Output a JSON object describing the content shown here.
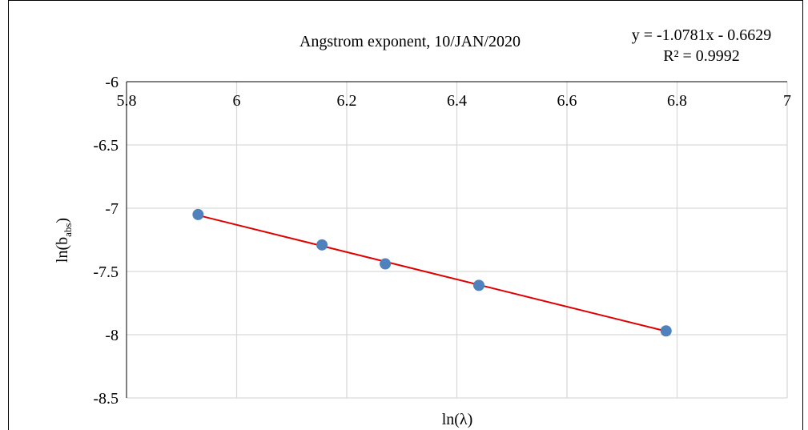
{
  "chart_data": {
    "type": "scatter",
    "title": "Angstrom exponent, 10/JAN/2020",
    "xlabel": "ln(λ)",
    "ylabel_main": "ln(b",
    "ylabel_sub": "abs",
    "ylabel_close": ")",
    "xlim": [
      5.8,
      7.0
    ],
    "ylim": [
      -8.5,
      -6.0
    ],
    "x_ticks": [
      5.8,
      6.0,
      6.2,
      6.4,
      6.6,
      6.8,
      7.0
    ],
    "x_tick_labels": [
      "5.8",
      "6",
      "6.2",
      "6.4",
      "6.6",
      "6.8",
      "7"
    ],
    "y_ticks": [
      -6.0,
      -6.5,
      -7.0,
      -7.5,
      -8.0,
      -8.5
    ],
    "y_tick_labels": [
      "-6",
      "-6.5",
      "-7",
      "-7.5",
      "-8",
      "-8.5"
    ],
    "x_axis_position": "top",
    "grid": true,
    "series": [
      {
        "x": [
          5.93,
          6.155,
          6.27,
          6.44,
          6.78
        ],
        "y": [
          -7.05,
          -7.29,
          -7.44,
          -7.61,
          -7.97
        ],
        "color": "#4F81BD"
      }
    ],
    "trendline": {
      "slope": -1.0781,
      "intercept": -0.6629,
      "x_range": [
        5.93,
        6.78
      ],
      "color": "#E00000",
      "equation": "y = -1.0781x - 0.6629",
      "r2": "R² = 0.9992"
    },
    "colors": {
      "grid": "#D9D9D9",
      "axis": "#000000"
    }
  }
}
